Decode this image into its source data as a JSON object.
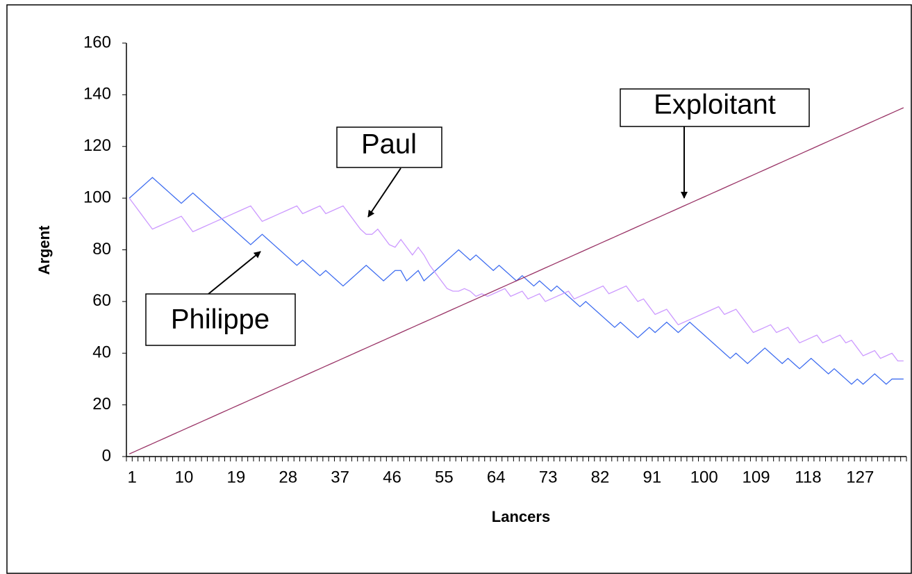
{
  "chart_data": {
    "type": "line",
    "x_label": "Lancers",
    "y_label": "Argent",
    "categories": [
      1,
      null,
      null,
      null,
      null,
      null,
      null,
      null,
      null,
      10,
      null,
      null,
      null,
      null,
      null,
      null,
      null,
      null,
      19,
      null,
      null,
      null,
      null,
      null,
      null,
      null,
      null,
      28,
      null,
      null,
      null,
      null,
      null,
      null,
      null,
      null,
      37,
      null,
      null,
      null,
      null,
      null,
      null,
      null,
      null,
      46,
      null,
      null,
      null,
      null,
      null,
      null,
      null,
      null,
      55,
      null,
      null,
      null,
      null,
      null,
      null,
      null,
      null,
      64,
      null,
      null,
      null,
      null,
      null,
      null,
      null,
      null,
      73,
      null,
      null,
      null,
      null,
      null,
      null,
      null,
      null,
      82,
      null,
      null,
      null,
      null,
      null,
      null,
      null,
      null,
      91,
      null,
      null,
      null,
      null,
      null,
      null,
      null,
      null,
      100,
      null,
      null,
      null,
      null,
      null,
      null,
      null,
      null,
      109,
      null,
      null,
      null,
      null,
      null,
      null,
      null,
      null,
      118,
      null,
      null,
      null,
      null,
      null,
      null,
      null,
      null,
      127,
      null,
      null,
      null,
      null,
      null,
      null,
      null,
      null
    ],
    "series": [
      {
        "name": "Philippe",
        "color": "#3d6cf0",
        "values": [
          100,
          102,
          104,
          106,
          108,
          106,
          104,
          102,
          100,
          98,
          100,
          102,
          100,
          98,
          96,
          94,
          92,
          90,
          88,
          86,
          84,
          82,
          84,
          86,
          84,
          82,
          80,
          78,
          76,
          74,
          76,
          74,
          72,
          70,
          72,
          70,
          68,
          66,
          68,
          70,
          72,
          74,
          72,
          70,
          68,
          70,
          72,
          72,
          68,
          70,
          72,
          68,
          70,
          72,
          74,
          76,
          78,
          80,
          78,
          76,
          78,
          76,
          74,
          72,
          74,
          72,
          70,
          68,
          70,
          68,
          66,
          68,
          66,
          64,
          66,
          64,
          62,
          60,
          58,
          60,
          58,
          56,
          54,
          52,
          50,
          52,
          50,
          48,
          46,
          48,
          50,
          48,
          50,
          52,
          50,
          48,
          50,
          52,
          50,
          48,
          46,
          44,
          42,
          40,
          38,
          40,
          38,
          36,
          38,
          40,
          42,
          40,
          38,
          36,
          38,
          36,
          34,
          36,
          38,
          36,
          34,
          32,
          34,
          32,
          30,
          28,
          30,
          28,
          30,
          32,
          30,
          28,
          30,
          30,
          30
        ]
      },
      {
        "name": "Paul",
        "color": "#cc99ff",
        "values": [
          100,
          97,
          94,
          91,
          88,
          89,
          90,
          91,
          92,
          93,
          90,
          87,
          88,
          89,
          90,
          91,
          92,
          93,
          94,
          95,
          96,
          97,
          94,
          91,
          92,
          93,
          94,
          95,
          96,
          97,
          94,
          95,
          96,
          97,
          94,
          95,
          96,
          97,
          94,
          91,
          88,
          86,
          86,
          88,
          85,
          82,
          81,
          84,
          81,
          78,
          81,
          78,
          74,
          71,
          68,
          65,
          64,
          64,
          65,
          64,
          62,
          63,
          62,
          63,
          64,
          65,
          62,
          63,
          64,
          61,
          62,
          63,
          60,
          61,
          62,
          63,
          64,
          61,
          62,
          63,
          64,
          65,
          66,
          63,
          64,
          65,
          66,
          63,
          60,
          61,
          58,
          55,
          56,
          57,
          54,
          51,
          52,
          53,
          54,
          55,
          56,
          57,
          58,
          55,
          56,
          57,
          54,
          51,
          48,
          49,
          50,
          51,
          48,
          49,
          50,
          47,
          44,
          45,
          46,
          47,
          44,
          45,
          46,
          47,
          44,
          45,
          42,
          39,
          40,
          41,
          38,
          39,
          40,
          37,
          37
        ]
      },
      {
        "name": "Exploitant",
        "color": "#993366",
        "values": [
          1,
          2,
          3,
          4,
          5,
          6,
          7,
          8,
          9,
          10,
          11,
          12,
          13,
          14,
          15,
          16,
          17,
          18,
          19,
          20,
          21,
          22,
          23,
          24,
          25,
          26,
          27,
          28,
          29,
          30,
          31,
          32,
          33,
          34,
          35,
          36,
          37,
          38,
          39,
          40,
          41,
          42,
          43,
          44,
          45,
          46,
          47,
          48,
          49,
          50,
          51,
          52,
          53,
          54,
          55,
          56,
          57,
          58,
          59,
          60,
          61,
          62,
          63,
          64,
          65,
          66,
          67,
          68,
          69,
          70,
          71,
          72,
          73,
          74,
          75,
          76,
          77,
          78,
          79,
          80,
          81,
          82,
          83,
          84,
          85,
          86,
          87,
          88,
          89,
          90,
          91,
          92,
          93,
          94,
          95,
          96,
          97,
          98,
          99,
          100,
          101,
          102,
          103,
          104,
          105,
          106,
          107,
          108,
          109,
          110,
          111,
          112,
          113,
          114,
          115,
          116,
          117,
          118,
          119,
          120,
          121,
          122,
          123,
          124,
          125,
          126,
          127,
          128,
          129,
          130,
          131,
          132,
          133,
          134,
          135
        ]
      }
    ],
    "ylim": [
      0,
      160
    ],
    "yticks": [
      0,
      20,
      40,
      60,
      80,
      100,
      120,
      140,
      160
    ],
    "grid": false,
    "annotations": [
      "Exploitant",
      "Paul",
      "Philippe"
    ]
  }
}
